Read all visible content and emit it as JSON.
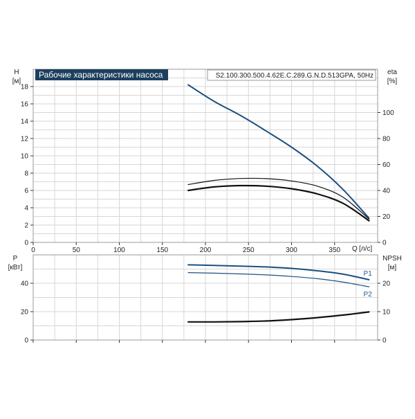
{
  "chart_data": [
    {
      "type": "line",
      "title": "Рабочие характеристики насоса",
      "subtitle": "S2.100.300.500.4.62E.C.289.G.N.D.513GPA, 50Hz",
      "x_axis": {
        "name": "Q",
        "unit": "[л/с]",
        "range": [
          0,
          400
        ],
        "ticks": [
          0,
          50,
          100,
          150,
          200,
          250,
          300,
          350
        ]
      },
      "y_left": {
        "name": "H",
        "unit": "[м]",
        "range": [
          0,
          20
        ],
        "ticks": [
          0,
          2,
          4,
          6,
          8,
          10,
          12,
          14,
          16,
          18
        ]
      },
      "y_right": {
        "name": "eta",
        "unit": "[%]",
        "range": [
          0,
          133.3
        ],
        "ticks": [
          0,
          20,
          40,
          60,
          80,
          100
        ]
      },
      "grid": true,
      "series": [
        {
          "axis": "left",
          "color": "#1c4f80",
          "x": [
            180,
            210,
            240,
            270,
            300,
            330,
            360,
            390
          ],
          "y": [
            18.2,
            16.3,
            14.7,
            12.9,
            11.0,
            8.8,
            6.1,
            2.8
          ]
        },
        {
          "axis": "right",
          "color": "#111111",
          "x": [
            180,
            210,
            240,
            270,
            300,
            330,
            360,
            390
          ],
          "y": [
            44.5,
            47.7,
            49.2,
            49.1,
            47.3,
            43.3,
            34.7,
            18.0
          ]
        },
        {
          "axis": "right",
          "color": "#111111",
          "x": [
            180,
            210,
            240,
            270,
            300,
            330,
            360,
            390
          ],
          "y": [
            40.0,
            42.7,
            43.7,
            43.3,
            41.3,
            37.3,
            30.0,
            16.7
          ]
        }
      ]
    },
    {
      "type": "line",
      "x_axis": {
        "range": [
          0,
          400
        ]
      },
      "y_left": {
        "name": "P",
        "unit": "[кВт]",
        "range": [
          0,
          60
        ],
        "ticks": [
          0,
          20,
          40
        ]
      },
      "y_right": {
        "name": "NPSH",
        "unit": "[м]",
        "range": [
          0,
          30
        ],
        "ticks": [
          0,
          10,
          20
        ]
      },
      "grid": true,
      "series": [
        {
          "name": "P1",
          "axis": "left",
          "color": "#1c4f80",
          "x": [
            180,
            210,
            240,
            270,
            300,
            330,
            360,
            390
          ],
          "y": [
            53.0,
            52.6,
            52.1,
            51.5,
            50.5,
            48.8,
            46.4,
            42.5
          ]
        },
        {
          "name": "P2",
          "axis": "left",
          "color": "#1c4f80",
          "x": [
            180,
            210,
            240,
            270,
            300,
            330,
            360,
            390
          ],
          "y": [
            47.5,
            47.1,
            46.6,
            45.9,
            44.8,
            43.2,
            40.8,
            37.5
          ]
        },
        {
          "axis": "right",
          "color": "#111111",
          "x": [
            180,
            210,
            240,
            270,
            300,
            330,
            360,
            390
          ],
          "y": [
            6.4,
            6.4,
            6.5,
            6.7,
            7.2,
            7.9,
            8.8,
            9.9
          ]
        }
      ]
    }
  ]
}
